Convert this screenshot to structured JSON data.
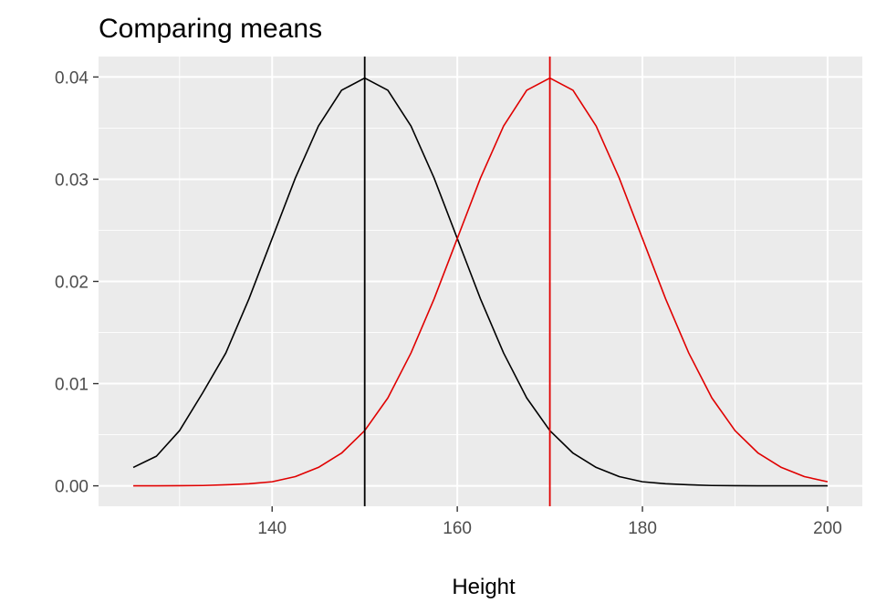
{
  "chart_data": {
    "type": "line",
    "title": "Comparing means",
    "xlabel": "Height",
    "ylabel": "",
    "xlim": [
      121.25,
      203.75
    ],
    "ylim": [
      -0.002,
      0.042
    ],
    "x_ticks": [
      140,
      160,
      180,
      200
    ],
    "x_minor_ticks": [
      130,
      150,
      170,
      190
    ],
    "y_ticks": [
      0.0,
      0.01,
      0.02,
      0.03,
      0.04
    ],
    "y_tick_labels": [
      "0.00",
      "0.01",
      "0.02",
      "0.03",
      "0.04"
    ],
    "y_minor_ticks": [
      0.005,
      0.015,
      0.025,
      0.035
    ],
    "grid": true,
    "legend": "none",
    "background": "#ebebeb",
    "grid_color": "#ffffff",
    "series": [
      {
        "color": "#000000",
        "x": [
          125,
          127.5,
          130,
          132.5,
          135,
          137.5,
          140,
          142.5,
          145,
          147.5,
          150,
          152.5,
          155,
          157.5,
          160,
          162.5,
          165,
          167.5,
          170,
          172.5,
          175,
          177.5,
          180,
          182.5,
          185,
          187.5,
          190,
          192.5,
          195,
          197.5,
          200
        ],
        "y": [
          0.0018,
          0.0029,
          0.0054,
          0.0091,
          0.013,
          0.0183,
          0.0242,
          0.0301,
          0.0352,
          0.0387,
          0.0399,
          0.0387,
          0.0352,
          0.0301,
          0.0242,
          0.0183,
          0.013,
          0.0086,
          0.0054,
          0.0032,
          0.0018,
          0.0009,
          0.0004,
          0.0002,
          0.0001,
          3e-05,
          1e-05,
          0.0,
          0.0,
          0.0,
          0.0
        ]
      },
      {
        "color": "#e00000",
        "x": [
          125,
          127.5,
          130,
          132.5,
          135,
          137.5,
          140,
          142.5,
          145,
          147.5,
          150,
          152.5,
          155,
          157.5,
          160,
          162.5,
          165,
          167.5,
          170,
          172.5,
          175,
          177.5,
          180,
          182.5,
          185,
          187.5,
          190,
          192.5,
          195,
          197.5,
          200
        ],
        "y": [
          0.0,
          0.0,
          1e-05,
          3e-05,
          0.0001,
          0.0002,
          0.0004,
          0.0009,
          0.0018,
          0.0032,
          0.0054,
          0.0086,
          0.013,
          0.0183,
          0.0242,
          0.0301,
          0.0352,
          0.0387,
          0.0399,
          0.0387,
          0.0352,
          0.0301,
          0.0242,
          0.0183,
          0.013,
          0.0086,
          0.0054,
          0.0032,
          0.0018,
          0.0009,
          0.0004
        ]
      }
    ],
    "vlines": [
      {
        "x": 150,
        "color": "#000000"
      },
      {
        "x": 170,
        "color": "#e00000"
      }
    ]
  }
}
